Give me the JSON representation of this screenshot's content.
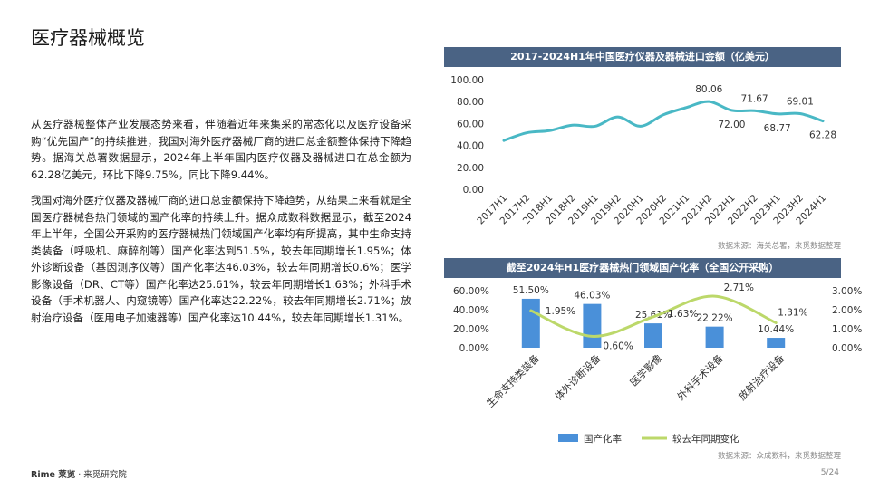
{
  "page": {
    "title": "医疗器械概览",
    "paragraphs": [
      "从医疗器械整体产业发展态势来看，伴随着近年来集采的常态化以及医疗设备采购“优先国产”的持续推进，我国对海外医疗器械厂商的进口总金额整体保持下降趋势。据海关总署数据显示，2024年上半年国内医疗仪器及器械进口在总金额为62.28亿美元，环比下降9.75%，同比下降9.44%。",
      "我国对海外医疗仪器及器械厂商的进口总金额保持下降趋势，从结果上来看就是全国医疗器械各热门领域的国产化率的持续上升。据众成数科数据显示，截至2024年上半年，全国公开采购的医疗器械热门领域国产化率均有所提高，其中生命支持类装备（呼吸机、麻醉剂等）国产化率达到51.5%，较去年同期增长1.95%；体外诊断设备（基因测序仪等）国产化率达46.03%，较去年同期增长0.6%；医学影像设备（DR、CT等）国产化率达25.61%，较去年同期增长1.63%；外科手术设备（手术机器人、内窥镜等）国产化率达22.22%，较去年同期增长2.71%；放射治疗设备（医用电子加速器等）国产化率达10.44%，较去年同期增长1.31%。"
    ],
    "footer_brand": "Rime 莱览",
    "footer_org": "· 来觅研究院",
    "page_number": "5/24"
  },
  "colors": {
    "line1": "#49b8c5",
    "bar": "#4a90d9",
    "line2": "#bcd86a",
    "header": "#4a6384"
  },
  "chart_data": [
    {
      "type": "line",
      "title": "2017-2024H1年中国医疗仪器及器械进口金额（亿美元）",
      "x": [
        "2017H1",
        "2017H2",
        "2018H1",
        "2018H2",
        "2019H1",
        "2019H2",
        "2020H1",
        "2020H2",
        "2021H1",
        "2021H2",
        "2022H1",
        "2022H2",
        "2023H1",
        "2023H2",
        "2024H1"
      ],
      "series": [
        {
          "values": [
            44.5,
            51.5,
            53.5,
            58.5,
            57.5,
            66.0,
            57.5,
            68.0,
            74.5,
            80.06,
            72.0,
            71.67,
            68.77,
            69.01,
            62.28
          ]
        }
      ],
      "data_labels": [
        {
          "index": 9,
          "text": "80.06",
          "pos": "above"
        },
        {
          "index": 10,
          "text": "72.00",
          "pos": "below"
        },
        {
          "index": 11,
          "text": "71.67",
          "pos": "above"
        },
        {
          "index": 12,
          "text": "68.77",
          "pos": "below"
        },
        {
          "index": 13,
          "text": "69.01",
          "pos": "above"
        },
        {
          "index": 14,
          "text": "62.28",
          "pos": "below"
        }
      ],
      "yticks": [
        "0.00",
        "20.00",
        "40.00",
        "60.00",
        "80.00",
        "100.00"
      ],
      "ylim": [
        0,
        100
      ],
      "grid": false,
      "source": "数据来源：海关总署，来觅数据整理"
    },
    {
      "type": "bar",
      "title": "截至2024年H1医疗器械热门领域国产化率（全国公开采购）",
      "categories": [
        "生命支持类装备",
        "体外诊断设备",
        "医学影像",
        "外科手术设备",
        "放射治疗设备"
      ],
      "series": [
        {
          "name": "国产化率",
          "type": "bar",
          "values": [
            51.5,
            46.03,
            25.61,
            22.22,
            10.44
          ],
          "labels": [
            "51.50%",
            "46.03%",
            "25.61%",
            "22.22%",
            "10.44%"
          ],
          "axis": "left"
        },
        {
          "name": "较去年同期变化",
          "type": "line",
          "values": [
            1.95,
            0.6,
            1.63,
            2.71,
            1.31
          ],
          "labels": [
            "1.95%",
            "0.60%",
            "1.63%",
            "2.71%",
            "1.31%"
          ],
          "axis": "right"
        }
      ],
      "ylim_left": [
        0,
        60
      ],
      "yticks_left": [
        "0.00%",
        "20.00%",
        "40.00%",
        "60.00%"
      ],
      "ylim_right": [
        0,
        3
      ],
      "yticks_right": [
        "0.00%",
        "1.00%",
        "2.00%",
        "3.00%"
      ],
      "legend": "bottom",
      "source": "数据来源：众成数科，来觅数据整理"
    }
  ]
}
